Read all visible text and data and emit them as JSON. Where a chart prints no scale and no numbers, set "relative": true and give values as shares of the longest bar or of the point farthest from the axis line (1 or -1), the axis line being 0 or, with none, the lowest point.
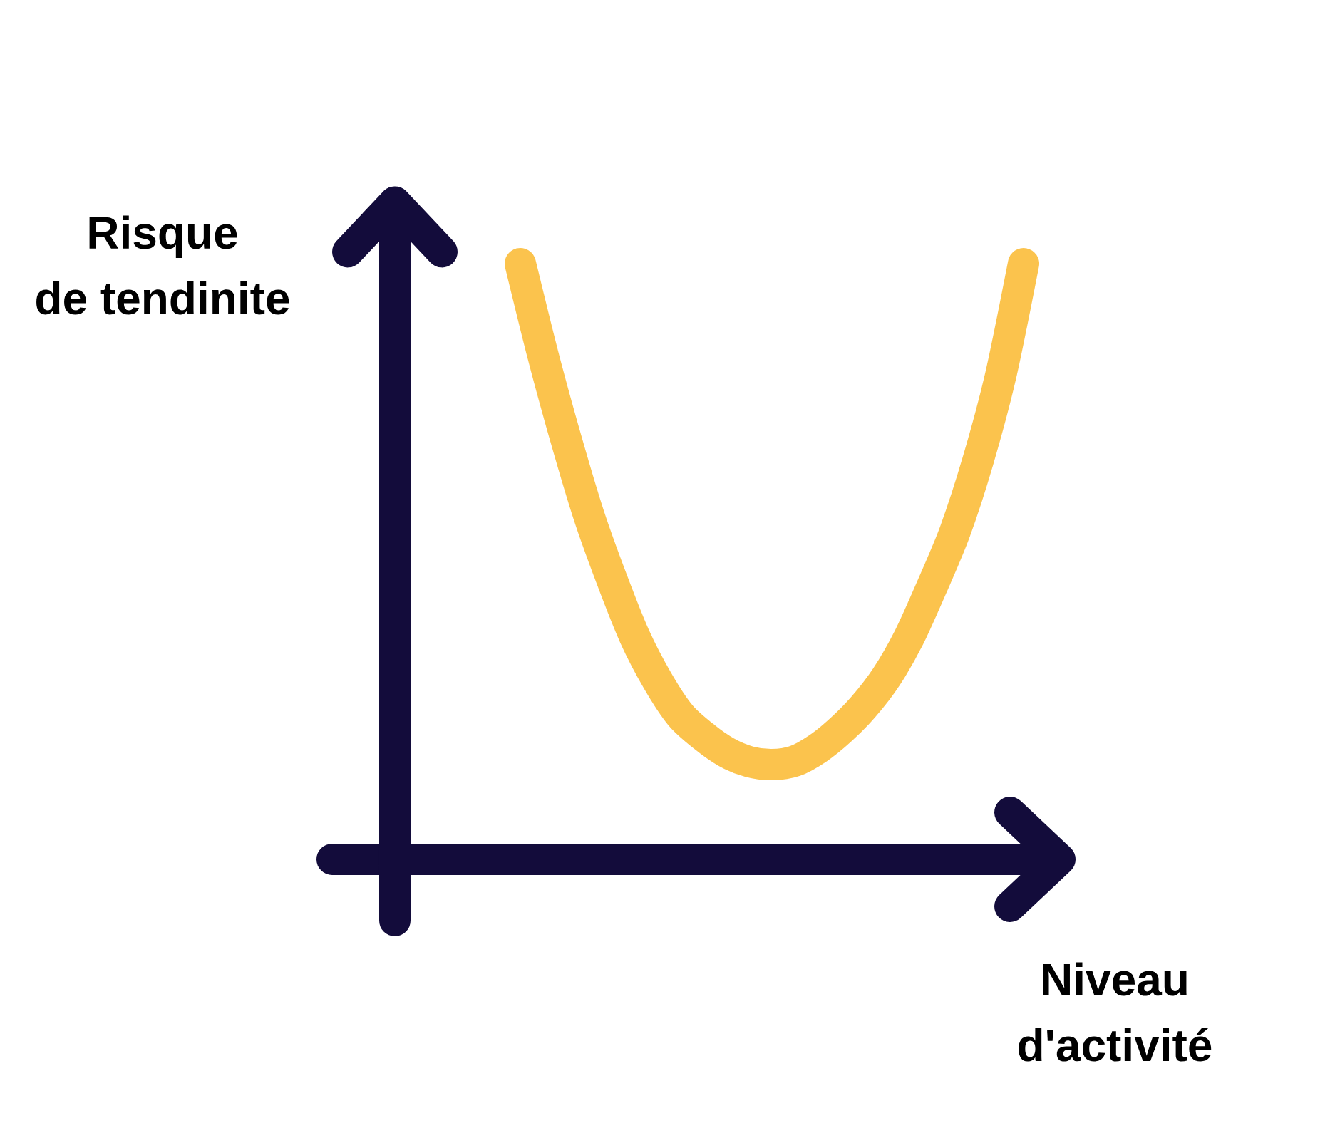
{
  "chart_data": {
    "type": "line",
    "xlabel": "Niveau d'activité",
    "ylabel": "Risque de tendinite",
    "categories": [
      null,
      null,
      null,
      null,
      null,
      null,
      null,
      null,
      null,
      null,
      null,
      null,
      null,
      null,
      null,
      null,
      null,
      null,
      null,
      null,
      null,
      null,
      null
    ],
    "values": [
      1,
      0.845,
      0.705,
      0.577,
      0.47,
      0.374,
      0.3,
      0.242,
      0.207,
      0.18,
      0.164,
      0.159,
      0.165,
      0.186,
      0.217,
      0.256,
      0.306,
      0.373,
      0.458,
      0.55,
      0.668,
      0.812,
      1
    ],
    "color": "#fbc34d",
    "relative": true,
    "marker": "none",
    "line_style": "solid"
  }
}
